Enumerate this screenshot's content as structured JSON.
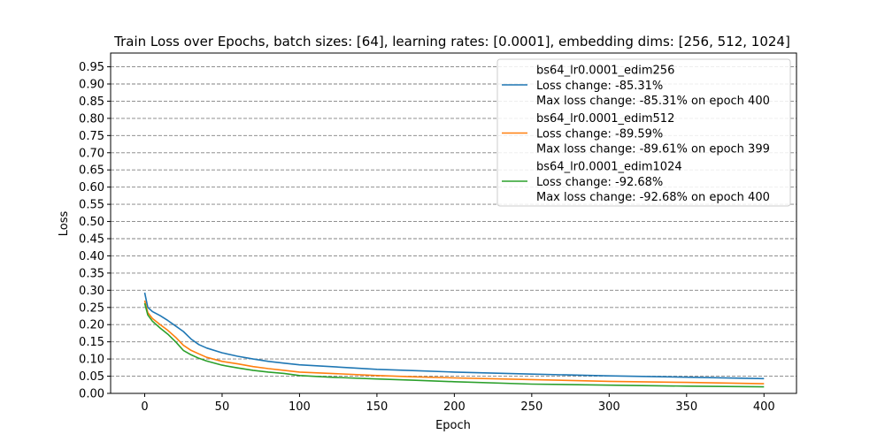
{
  "chart_data": {
    "type": "line",
    "title": "Train Loss over Epochs, batch sizes: [64], learning rates: [0.0001], embedding dims: [256, 512, 1024]",
    "xlabel": "Epoch",
    "ylabel": "Loss",
    "xlim": [
      -22,
      421
    ],
    "ylim": [
      0.0,
      0.99
    ],
    "x_ticks": [
      0,
      50,
      100,
      150,
      200,
      250,
      300,
      350,
      400
    ],
    "y_ticks": [
      0.0,
      0.05,
      0.1,
      0.15,
      0.2,
      0.25,
      0.3,
      0.35,
      0.4,
      0.45,
      0.5,
      0.55,
      0.6,
      0.65,
      0.7,
      0.75,
      0.8,
      0.85,
      0.9,
      0.95
    ],
    "y_tick_labels": [
      "0.00",
      "0.05",
      "0.10",
      "0.15",
      "0.20",
      "0.25",
      "0.30",
      "0.35",
      "0.40",
      "0.45",
      "0.50",
      "0.55",
      "0.60",
      "0.65",
      "0.70",
      "0.75",
      "0.80",
      "0.85",
      "0.90",
      "0.95"
    ],
    "grid": "horizontal dashed",
    "legend_position": "top-right",
    "series": [
      {
        "name": "bs64_lr0.0001_edim256",
        "legend_lines": [
          "bs64_lr0.0001_edim256",
          "Loss change: -85.31%",
          "Max loss change: -85.31% on epoch 400"
        ],
        "color": "#1f77b4",
        "points": [
          [
            0,
            0.293
          ],
          [
            2,
            0.25
          ],
          [
            5,
            0.238
          ],
          [
            10,
            0.226
          ],
          [
            15,
            0.212
          ],
          [
            20,
            0.196
          ],
          [
            25,
            0.18
          ],
          [
            30,
            0.158
          ],
          [
            35,
            0.142
          ],
          [
            40,
            0.132
          ],
          [
            50,
            0.118
          ],
          [
            60,
            0.108
          ],
          [
            70,
            0.1
          ],
          [
            80,
            0.093
          ],
          [
            90,
            0.088
          ],
          [
            100,
            0.083
          ],
          [
            120,
            0.078
          ],
          [
            150,
            0.07
          ],
          [
            175,
            0.066
          ],
          [
            200,
            0.062
          ],
          [
            250,
            0.056
          ],
          [
            300,
            0.051
          ],
          [
            350,
            0.047
          ],
          [
            400,
            0.043
          ]
        ]
      },
      {
        "name": "bs64_lr0.0001_edim512",
        "legend_lines": [
          "bs64_lr0.0001_edim512",
          "Loss change: -89.59%",
          "Max loss change: -89.61% on epoch 399"
        ],
        "color": "#ff7f0e",
        "points": [
          [
            0,
            0.27
          ],
          [
            2,
            0.235
          ],
          [
            5,
            0.218
          ],
          [
            10,
            0.2
          ],
          [
            15,
            0.183
          ],
          [
            20,
            0.163
          ],
          [
            25,
            0.14
          ],
          [
            30,
            0.125
          ],
          [
            35,
            0.115
          ],
          [
            40,
            0.105
          ],
          [
            50,
            0.093
          ],
          [
            60,
            0.086
          ],
          [
            70,
            0.078
          ],
          [
            80,
            0.072
          ],
          [
            90,
            0.067
          ],
          [
            100,
            0.062
          ],
          [
            120,
            0.058
          ],
          [
            150,
            0.052
          ],
          [
            175,
            0.048
          ],
          [
            200,
            0.045
          ],
          [
            250,
            0.04
          ],
          [
            300,
            0.035
          ],
          [
            350,
            0.032
          ],
          [
            400,
            0.028
          ]
        ]
      },
      {
        "name": "bs64_lr0.0001_edim1024",
        "legend_lines": [
          "bs64_lr0.0001_edim1024",
          "Loss change: -92.68%",
          "Max loss change: -92.68% on epoch 400"
        ],
        "color": "#2ca02c",
        "points": [
          [
            0,
            0.262
          ],
          [
            2,
            0.228
          ],
          [
            5,
            0.21
          ],
          [
            10,
            0.19
          ],
          [
            15,
            0.172
          ],
          [
            20,
            0.15
          ],
          [
            25,
            0.125
          ],
          [
            30,
            0.112
          ],
          [
            35,
            0.102
          ],
          [
            40,
            0.094
          ],
          [
            50,
            0.082
          ],
          [
            60,
            0.074
          ],
          [
            70,
            0.067
          ],
          [
            80,
            0.062
          ],
          [
            90,
            0.058
          ],
          [
            100,
            0.052
          ],
          [
            120,
            0.047
          ],
          [
            150,
            0.042
          ],
          [
            175,
            0.038
          ],
          [
            200,
            0.034
          ],
          [
            250,
            0.027
          ],
          [
            300,
            0.024
          ],
          [
            350,
            0.021
          ],
          [
            400,
            0.019
          ]
        ]
      }
    ]
  }
}
